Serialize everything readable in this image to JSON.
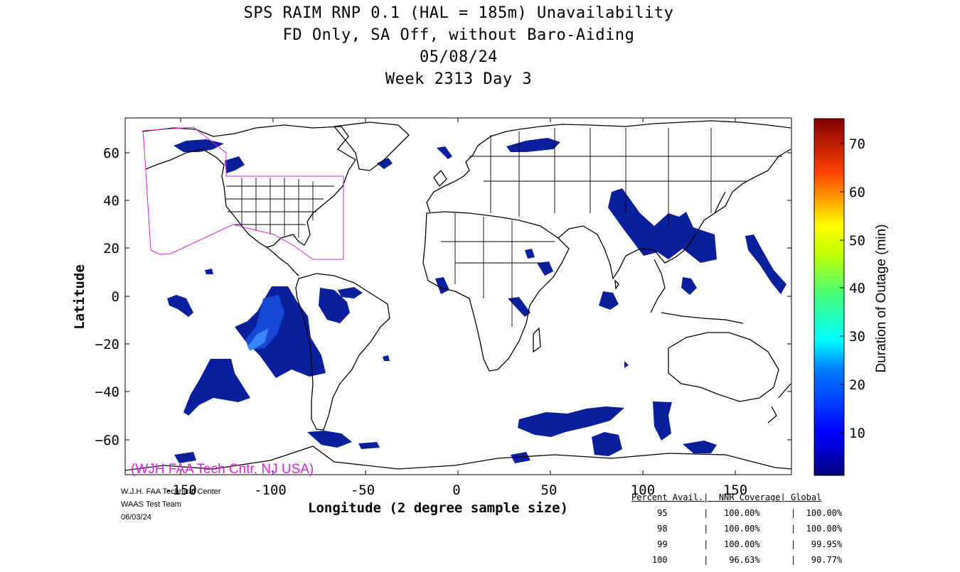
{
  "title": {
    "line1": "SPS RAIM RNP 0.1 (HAL = 185m) Unavailability",
    "line2": "FD Only, SA Off, without Baro-Aiding",
    "line3": "05/08/24",
    "line4": "Week 2313 Day 3"
  },
  "axes": {
    "xlabel": "Longitude (2 degree sample size)",
    "ylabel": "Latitude",
    "x_ticks": [
      "-150",
      "-100",
      "-50",
      "0",
      "50",
      "100",
      "150"
    ],
    "y_ticks": [
      "60",
      "40",
      "20",
      "0",
      "−20",
      "−40",
      "−60"
    ],
    "x_range": [
      -180,
      180
    ],
    "y_range": [
      -75,
      75
    ]
  },
  "colorbar": {
    "title": "Duration of Outage (min)",
    "ticks": [
      "70",
      "60",
      "50",
      "40",
      "30",
      "20",
      "10"
    ],
    "range": [
      0,
      75
    ]
  },
  "watermark": "(WJH FAA Tech Cntr, NJ USA)",
  "credits": {
    "line1": "W.J.H. FAA Technical Center",
    "line2": "WAAS Test Team",
    "line3": "06/03/24"
  },
  "stats": {
    "header": "Percent Avail.|  NNR Coverage| Global",
    "rows": [
      "     95       |   100.00%      |  100.00%",
      "     98       |   100.00%      |  100.00%",
      "     99       |   100.00%      |   99.95%",
      "    100       |    96.63%      |   90.77%"
    ]
  },
  "colors": {
    "outage": "#0a1f9c",
    "outage_dark": "#00107a",
    "outage_light": "#3a6cff",
    "nnr_boundary": "#e020e0"
  }
}
